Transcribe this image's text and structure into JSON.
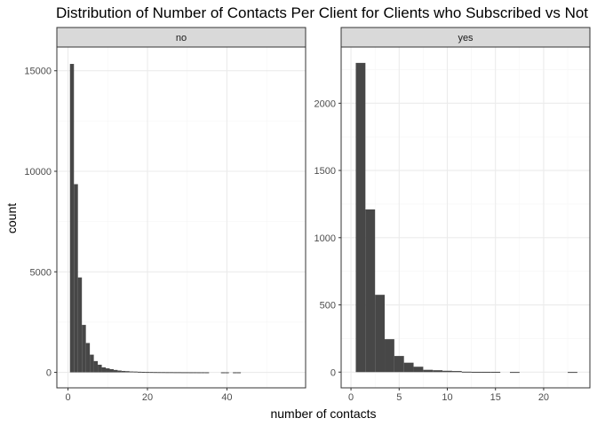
{
  "chart_data": {
    "type": "bar",
    "title": "Distribution of Number of Contacts Per Client for Clients who Subscribed vs Not",
    "xlabel": "number of contacts",
    "ylabel": "count",
    "grid": true,
    "facets": [
      {
        "strip_label": "no",
        "xlim": [
          -2.8,
          59.8
        ],
        "ylim": [
          -770,
          16180
        ],
        "x_ticks": [
          0,
          20,
          40
        ],
        "y_ticks": [
          0,
          5000,
          10000,
          15000
        ],
        "bin_width": 1,
        "bins": [
          {
            "x": 1,
            "count": 15340
          },
          {
            "x": 2,
            "count": 9360
          },
          {
            "x": 3,
            "count": 4720
          },
          {
            "x": 4,
            "count": 2360
          },
          {
            "x": 5,
            "count": 1460
          },
          {
            "x": 6,
            "count": 880
          },
          {
            "x": 7,
            "count": 560
          },
          {
            "x": 8,
            "count": 380
          },
          {
            "x": 9,
            "count": 250
          },
          {
            "x": 10,
            "count": 200
          },
          {
            "x": 11,
            "count": 160
          },
          {
            "x": 12,
            "count": 120
          },
          {
            "x": 13,
            "count": 90
          },
          {
            "x": 14,
            "count": 70
          },
          {
            "x": 15,
            "count": 60
          },
          {
            "x": 16,
            "count": 45
          },
          {
            "x": 17,
            "count": 40
          },
          {
            "x": 18,
            "count": 30
          },
          {
            "x": 19,
            "count": 25
          },
          {
            "x": 20,
            "count": 20
          },
          {
            "x": 21,
            "count": 18
          },
          {
            "x": 22,
            "count": 15
          },
          {
            "x": 23,
            "count": 13
          },
          {
            "x": 24,
            "count": 12
          },
          {
            "x": 25,
            "count": 10
          },
          {
            "x": 26,
            "count": 10
          },
          {
            "x": 27,
            "count": 8
          },
          {
            "x": 28,
            "count": 8
          },
          {
            "x": 29,
            "count": 6
          },
          {
            "x": 30,
            "count": 6
          },
          {
            "x": 31,
            "count": 5
          },
          {
            "x": 32,
            "count": 5
          },
          {
            "x": 33,
            "count": 4
          },
          {
            "x": 34,
            "count": 4
          },
          {
            "x": 35,
            "count": 3
          },
          {
            "x": 39,
            "count": 2
          },
          {
            "x": 40,
            "count": 2
          },
          {
            "x": 42,
            "count": 2
          },
          {
            "x": 43,
            "count": 2
          }
        ]
      },
      {
        "strip_label": "yes",
        "xlim": [
          -1.02,
          24.8
        ],
        "ylim": [
          -117,
          2418
        ],
        "x_ticks": [
          0,
          5,
          10,
          15,
          20
        ],
        "y_ticks": [
          0,
          500,
          1000,
          1500,
          2000
        ],
        "bin_width": 1,
        "bins": [
          {
            "x": 1,
            "count": 2300
          },
          {
            "x": 2,
            "count": 1210
          },
          {
            "x": 3,
            "count": 575
          },
          {
            "x": 4,
            "count": 245
          },
          {
            "x": 5,
            "count": 120
          },
          {
            "x": 6,
            "count": 70
          },
          {
            "x": 7,
            "count": 40
          },
          {
            "x": 8,
            "count": 17
          },
          {
            "x": 9,
            "count": 14
          },
          {
            "x": 10,
            "count": 10
          },
          {
            "x": 11,
            "count": 8
          },
          {
            "x": 12,
            "count": 3
          },
          {
            "x": 13,
            "count": 2
          },
          {
            "x": 14,
            "count": 2
          },
          {
            "x": 15,
            "count": 2
          },
          {
            "x": 17,
            "count": 1
          },
          {
            "x": 23,
            "count": 1
          }
        ]
      }
    ]
  },
  "colors": {
    "bar_fill": "#474747",
    "panel_background": "#ffffff",
    "grid_major": "#ebebeb",
    "grid_minor": "#f5f5f5",
    "panel_border": "#333333",
    "strip_background": "#d9d9d9",
    "tick_text": "#4d4d4d"
  }
}
